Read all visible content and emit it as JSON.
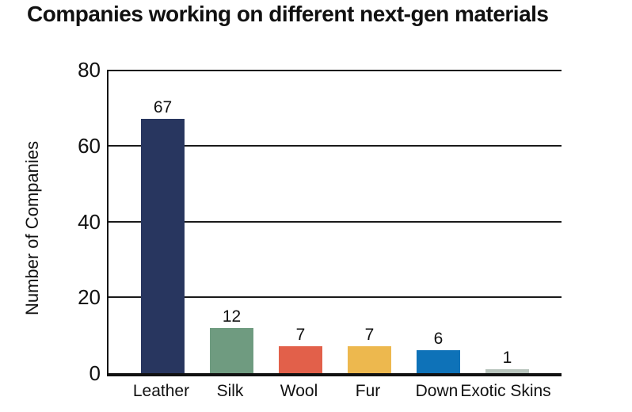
{
  "title": "Companies working on different next-gen materials",
  "chart_data": {
    "type": "bar",
    "title": "Companies working on different next-gen materials",
    "categories": [
      "Leather",
      "Silk",
      "Wool",
      "Fur",
      "Down",
      "Exotic Skins"
    ],
    "values": [
      67,
      12,
      7,
      7,
      6,
      1
    ],
    "bar_colors": [
      "#28365f",
      "#6f9b80",
      "#e2604a",
      "#edb84e",
      "#0e72b8",
      "#b8c4bc"
    ],
    "xlabel": "",
    "ylabel": "Number of Companies",
    "ylim": [
      0,
      80
    ],
    "yticks": [
      0,
      20,
      40,
      60,
      80
    ],
    "grid": true,
    "gridline_color": "#1a1a1a",
    "axis_color": "#111111",
    "text_color": "#111111",
    "legend": false
  }
}
